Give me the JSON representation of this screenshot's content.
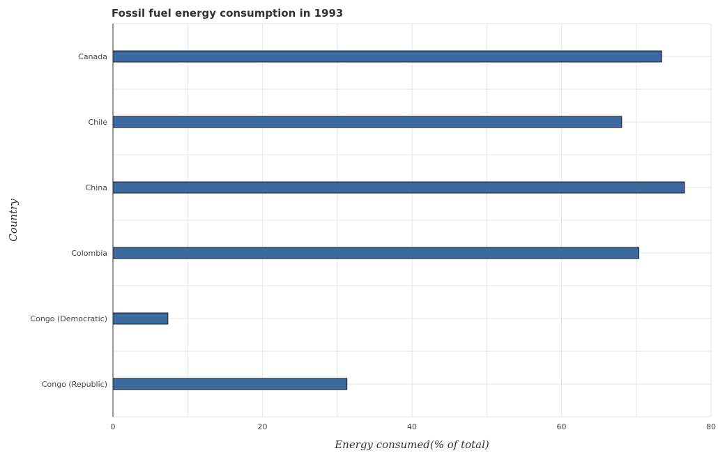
{
  "chart_data": {
    "type": "bar",
    "orientation": "horizontal",
    "title": "Fossil fuel energy consumption in 1993",
    "xlabel": "Energy consumed(% of total)",
    "ylabel": "Country",
    "categories": [
      "Canada",
      "Chile",
      "China",
      "Colombia",
      "Congo (Democratic)",
      "Congo (Republic)"
    ],
    "values": [
      73.4,
      68.05,
      76.45,
      70.35,
      7.35,
      31.3
    ],
    "xlim": [
      0,
      80
    ],
    "xticks": [
      0,
      20,
      40,
      60,
      80
    ],
    "grid": true,
    "bar_color": "#3b6aa0"
  }
}
